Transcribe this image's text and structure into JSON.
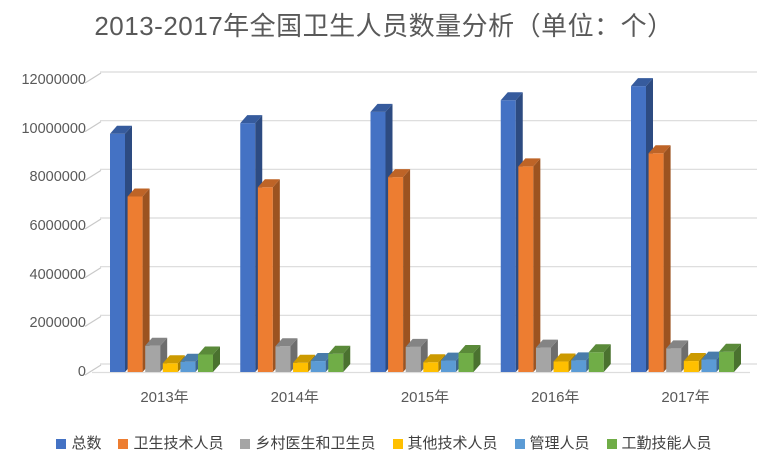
{
  "title": "2013-2017年全国卫生人员数量分析（单位：个）",
  "chart_data": {
    "type": "bar",
    "style": "3d-clustered-column",
    "title": "2013-2017年全国卫生人员数量分析（单位：个）",
    "categories": [
      "2013年",
      "2014年",
      "2015年",
      "2016年",
      "2017年"
    ],
    "series": [
      {
        "name": "总数",
        "color": "#4472C4",
        "values": [
          9790000,
          10230000,
          10690000,
          11170000,
          11750000
        ]
      },
      {
        "name": "卫生技术人员",
        "color": "#ED7D31",
        "values": [
          7210000,
          7590000,
          8010000,
          8450000,
          8990000
        ]
      },
      {
        "name": "乡村医生和卫生员",
        "color": "#A5A5A5",
        "values": [
          1080000,
          1060000,
          1030000,
          1000000,
          970000
        ]
      },
      {
        "name": "其他技术人员",
        "color": "#FFC000",
        "values": [
          360000,
          380000,
          400000,
          430000,
          450000
        ]
      },
      {
        "name": "管理人员",
        "color": "#5B9BD5",
        "values": [
          420000,
          450000,
          470000,
          480000,
          510000
        ]
      },
      {
        "name": "工勤技能人员",
        "color": "#70AD47",
        "values": [
          720000,
          750000,
          780000,
          810000,
          830000
        ]
      }
    ],
    "y_ticks": [
      0,
      2000000,
      4000000,
      6000000,
      8000000,
      10000000,
      12000000
    ],
    "ylim": [
      0,
      12000000
    ],
    "xlabel": "",
    "ylabel": "",
    "grid": true,
    "legend_position": "bottom",
    "gridline_color": "#D9D9D9",
    "axis_text_color": "#595959",
    "legend_text_color": "#404040"
  }
}
